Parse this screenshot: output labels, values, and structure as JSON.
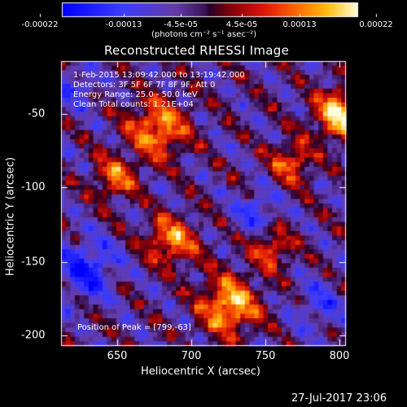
{
  "colorbar": {
    "ticks": [
      "-0.00022",
      "-0.00013",
      "-4.5e-05",
      "4.5e-05",
      "0.00013",
      "0.00022"
    ],
    "units": "(photons cm⁻² s⁻¹ asec⁻²)"
  },
  "title": "Reconstructed RHESSI Image",
  "info": {
    "time": "1-Feb-2015 13:09:42.000 to 13:19:42.000",
    "detectors": "Detectors: 3F 5F 6F 7F 8F 9F, Att 0",
    "energy": "Energy Range: 25.0 - 50.0 keV",
    "clean": "Clean    Total counts: 1.21E+04"
  },
  "peak_label": "Position of Peak = [799,-63]",
  "axes": {
    "xlabel": "Heliocentric X (arcsec)",
    "ylabel": "Heliocentric Y (arcsec)",
    "xticks": [
      "650",
      "700",
      "750",
      "800"
    ],
    "yticks": [
      "-50",
      "-100",
      "-150",
      "-200"
    ]
  },
  "footer_date": "27-Jul-2017 23:06",
  "colors": {
    "background": "#000000",
    "colormap": [
      "#0000ff",
      "#3030ff",
      "#5a2fa6",
      "#6a1a8a",
      "#4b0f5a",
      "#8a0a0a",
      "#e01010",
      "#ff6600",
      "#ffb000",
      "#ffff80",
      "#ffffff"
    ]
  }
}
